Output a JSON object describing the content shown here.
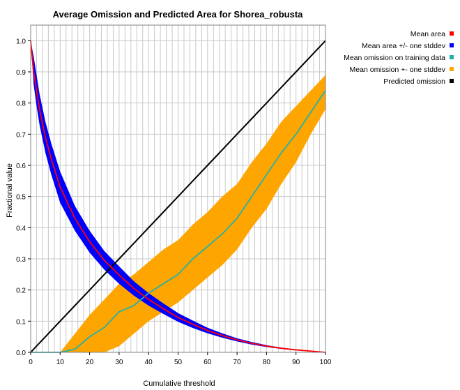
{
  "chart_data": {
    "type": "line",
    "title": "Average Omission and Predicted Area for Shorea_robusta",
    "xlabel": "Cumulative threshold",
    "ylabel": "Fractional value",
    "xlim": [
      0,
      100
    ],
    "ylim": [
      0,
      1.05
    ],
    "x_ticks": [
      "0",
      "10",
      "20",
      "30",
      "40",
      "50",
      "60",
      "70",
      "80",
      "90",
      "100"
    ],
    "y_ticks": [
      "0.0",
      "0.1",
      "0.2",
      "0.3",
      "0.4",
      "0.5",
      "0.6",
      "0.7",
      "0.8",
      "0.9",
      "1.0"
    ],
    "grid": true,
    "legend_position": "top-right, outside plot",
    "x": [
      0,
      1,
      2,
      3,
      5,
      7,
      10,
      15,
      20,
      25,
      30,
      35,
      40,
      45,
      50,
      55,
      60,
      65,
      70,
      75,
      80,
      85,
      90,
      95,
      100
    ],
    "series": [
      {
        "name": "Mean area",
        "color": "#ff0000",
        "values": [
          1.0,
          0.9,
          0.84,
          0.78,
          0.69,
          0.62,
          0.53,
          0.43,
          0.355,
          0.295,
          0.248,
          0.205,
          0.17,
          0.14,
          0.112,
          0.09,
          0.07,
          0.054,
          0.04,
          0.029,
          0.02,
          0.013,
          0.008,
          0.004,
          0.0
        ]
      },
      {
        "name": "Mean area +/- one stddev",
        "color": "#0000ff",
        "lower": [
          1.0,
          0.86,
          0.79,
          0.73,
          0.64,
          0.57,
          0.48,
          0.39,
          0.32,
          0.265,
          0.22,
          0.182,
          0.15,
          0.123,
          0.098,
          0.078,
          0.061,
          0.047,
          0.035,
          0.025,
          0.017,
          0.011,
          0.006,
          0.003,
          0.0
        ],
        "upper": [
          1.0,
          0.95,
          0.89,
          0.83,
          0.74,
          0.67,
          0.58,
          0.47,
          0.39,
          0.325,
          0.276,
          0.228,
          0.19,
          0.157,
          0.126,
          0.102,
          0.079,
          0.061,
          0.045,
          0.033,
          0.023,
          0.015,
          0.009,
          0.005,
          0.0
        ]
      },
      {
        "name": "Mean omission on training data",
        "color": "#20b2aa",
        "values": [
          0.0,
          0.0,
          0.0,
          0.0,
          0.0,
          0.0,
          0.0,
          0.01,
          0.05,
          0.08,
          0.13,
          0.15,
          0.19,
          0.22,
          0.25,
          0.3,
          0.34,
          0.38,
          0.43,
          0.5,
          0.57,
          0.64,
          0.7,
          0.77,
          0.84
        ]
      },
      {
        "name": "Mean omission +- one stddev",
        "color": "#ffa500",
        "lower": [
          0.0,
          0.0,
          0.0,
          0.0,
          0.0,
          0.0,
          0.0,
          0.0,
          0.0,
          0.0,
          0.02,
          0.06,
          0.1,
          0.13,
          0.16,
          0.2,
          0.24,
          0.28,
          0.33,
          0.4,
          0.46,
          0.54,
          0.61,
          0.7,
          0.78
        ],
        "upper": [
          0.0,
          0.0,
          0.0,
          0.0,
          0.0,
          0.0,
          0.0,
          0.06,
          0.12,
          0.17,
          0.22,
          0.25,
          0.29,
          0.33,
          0.36,
          0.41,
          0.45,
          0.5,
          0.54,
          0.61,
          0.67,
          0.74,
          0.79,
          0.84,
          0.89
        ]
      },
      {
        "name": "Predicted omission",
        "color": "#000000",
        "values": [
          0,
          0.01,
          0.02,
          0.03,
          0.05,
          0.07,
          0.1,
          0.15,
          0.2,
          0.25,
          0.3,
          0.35,
          0.4,
          0.45,
          0.5,
          0.55,
          0.6,
          0.65,
          0.7,
          0.75,
          0.8,
          0.85,
          0.9,
          0.95,
          1.0
        ]
      }
    ]
  }
}
